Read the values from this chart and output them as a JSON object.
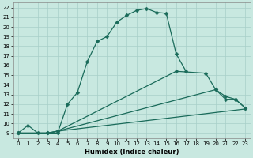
{
  "xlabel": "Humidex (Indice chaleur)",
  "xlim": [
    -0.5,
    23.5
  ],
  "ylim": [
    8.5,
    22.5
  ],
  "bg_color": "#c8e8e0",
  "grid_color": "#a8cfc8",
  "line_color": "#1a6b5a",
  "curve1_x": [
    0,
    1,
    2,
    3,
    4,
    5,
    6,
    7,
    8,
    9,
    10,
    11,
    12,
    13,
    14,
    15,
    16,
    17
  ],
  "curve1_y": [
    9.0,
    9.8,
    9.0,
    9.0,
    9.0,
    12.0,
    13.2,
    16.4,
    18.5,
    19.0,
    20.5,
    21.2,
    21.7,
    21.9,
    21.5,
    21.4,
    17.2,
    15.4
  ],
  "curve2_x": [
    0,
    3,
    4,
    16,
    19,
    20,
    21,
    22,
    23
  ],
  "curve2_y": [
    9.0,
    9.0,
    9.2,
    15.4,
    15.2,
    13.5,
    12.8,
    12.5,
    11.6
  ],
  "curve3_x": [
    0,
    3,
    4,
    20,
    21,
    22,
    23
  ],
  "curve3_y": [
    9.0,
    9.0,
    9.2,
    13.5,
    12.5,
    12.5,
    11.6
  ],
  "curve4_x": [
    0,
    3,
    4,
    23
  ],
  "curve4_y": [
    9.0,
    9.0,
    9.2,
    11.5
  ]
}
